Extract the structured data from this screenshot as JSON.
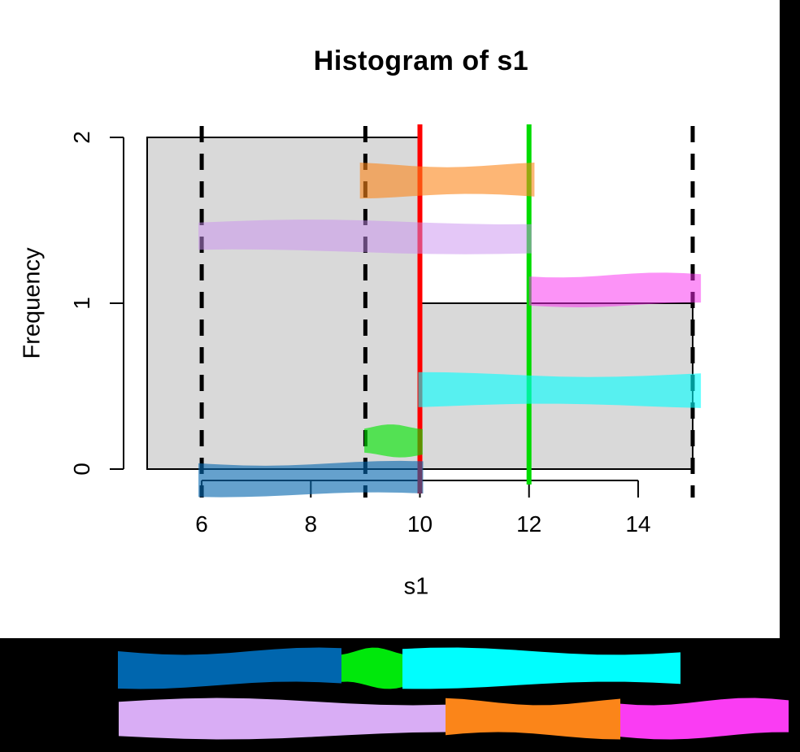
{
  "canvas": {
    "background": "#000000",
    "plot_background": "#FFFFFF"
  },
  "chart_data": {
    "type": "bar",
    "title": "Histogram of s1",
    "xlabel": "s1",
    "ylabel": "Frequency",
    "xlim": [
      5,
      15
    ],
    "ylim": [
      0,
      2
    ],
    "xticks": [
      6,
      8,
      10,
      12,
      14
    ],
    "yticks": [
      0,
      1,
      2
    ],
    "grid": false,
    "bar_fill": "#D9D9D9",
    "bar_border": "#000000",
    "bins": [
      {
        "x0": 5,
        "x1": 10,
        "count": 2
      },
      {
        "x0": 10,
        "x1": 15,
        "count": 1
      }
    ],
    "vlines": [
      {
        "x": 6,
        "style": "dashed",
        "color": "#000000"
      },
      {
        "x": 9,
        "style": "dashed",
        "color": "#000000"
      },
      {
        "x": 15,
        "style": "dashed",
        "color": "#000000"
      },
      {
        "x": 10,
        "style": "solid",
        "color": "#FF0000"
      },
      {
        "x": 12,
        "style": "solid",
        "color": "#00DB00"
      }
    ],
    "highlight_bands": [
      {
        "name": "blue-band",
        "x0": 5.94,
        "x1": 10.06,
        "y_center": -0.06,
        "half_height": 0.095,
        "color": "#0768AE",
        "opacity": 0.62
      },
      {
        "name": "green-band",
        "x0": 8.98,
        "x1": 10.05,
        "y_center": 0.17,
        "half_height": 0.085,
        "color": "#00E500",
        "opacity": 0.62
      },
      {
        "name": "cyan-band",
        "x0": 9.97,
        "x1": 15.15,
        "y_center": 0.475,
        "half_height": 0.095,
        "color": "#00FFFF",
        "opacity": 0.6
      },
      {
        "name": "magenta-band",
        "x0": 12.0,
        "x1": 15.15,
        "y_center": 1.08,
        "half_height": 0.09,
        "color": "#FA28F0",
        "opacity": 0.5
      },
      {
        "name": "lavender-band",
        "x0": 5.94,
        "x1": 12.05,
        "y_center": 1.4,
        "half_height": 0.09,
        "color": "#C98FF0",
        "opacity": 0.5
      },
      {
        "name": "orange-band",
        "x0": 8.9,
        "x1": 12.1,
        "y_center": 1.74,
        "half_height": 0.095,
        "color": "#FB8519",
        "opacity": 0.6
      }
    ]
  },
  "annotation_strips": {
    "background": "#000000",
    "rows": [
      {
        "name": "row-1",
        "y_center": 822,
        "thickness": 42,
        "segments": [
          {
            "label": "blue-segment",
            "color": "#0066AE",
            "x0": 145,
            "x1": 420
          },
          {
            "label": "green-segment",
            "color": "#00E80B",
            "x0": 420,
            "x1": 495
          },
          {
            "label": "cyan-segment",
            "color": "#00FEFE",
            "x0": 495,
            "x1": 837
          }
        ]
      },
      {
        "name": "row-2",
        "y_center": 884,
        "thickness": 42,
        "segments": [
          {
            "label": "lavender-segment",
            "color": "#D9ADF5",
            "x0": 146,
            "x1": 548
          },
          {
            "label": "orange-segment",
            "color": "#FB8519",
            "x0": 548,
            "x1": 763
          },
          {
            "label": "magenta-segment",
            "color": "#FA3CF3",
            "x0": 763,
            "x1": 970
          }
        ]
      }
    ]
  }
}
